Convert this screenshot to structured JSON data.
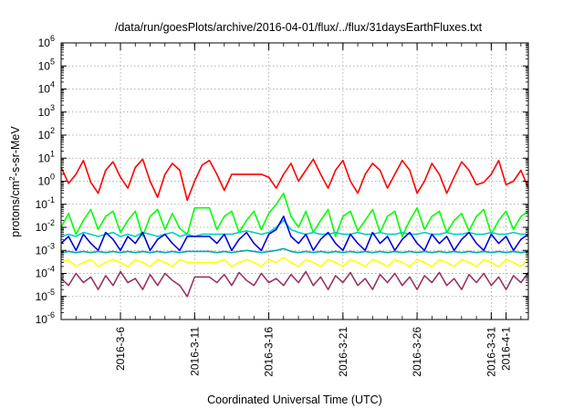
{
  "chart_data": {
    "type": "line",
    "title": "/data/run/goesPlots/archive/2016-04-01/flux/../flux/31daysEarthFluxes.txt",
    "xlabel": "Coordinated Universal Time (UTC)",
    "ylabel": {
      "prefix": "protons/cm",
      "sup": "2",
      "suffix": "-s-sr-MeV"
    },
    "yscale": "log",
    "ylim": [
      1e-06,
      1000000
    ],
    "y_ticks": [
      {
        "exp": "-6",
        "value": 1e-06
      },
      {
        "exp": "-5",
        "value": 1e-05
      },
      {
        "exp": "-4",
        "value": 0.0001
      },
      {
        "exp": "-3",
        "value": 0.001
      },
      {
        "exp": "-2",
        "value": 0.01
      },
      {
        "exp": "-1",
        "value": 0.1
      },
      {
        "exp": "0",
        "value": 1
      },
      {
        "exp": "1",
        "value": 10
      },
      {
        "exp": "2",
        "value": 100
      },
      {
        "exp": "3",
        "value": 1000
      },
      {
        "exp": "4",
        "value": 10000
      },
      {
        "exp": "5",
        "value": 100000
      },
      {
        "exp": "6",
        "value": 1000000
      }
    ],
    "xlim": [
      "2016-03-02T00:00",
      "2016-04-02T12:00"
    ],
    "x_ticks": [
      {
        "label": "2016-3-6",
        "date": "2016-03-06"
      },
      {
        "label": "2016-3-11",
        "date": "2016-03-11"
      },
      {
        "label": "2016-3-16",
        "date": "2016-03-16"
      },
      {
        "label": "2016-3-21",
        "date": "2016-03-21"
      },
      {
        "label": "2016-3-26",
        "date": "2016-03-26"
      },
      {
        "label": "2016-3-31",
        "date": "2016-03-31"
      },
      {
        "label": "2016-4-1",
        "date": "2016-04-01"
      }
    ],
    "grid": true,
    "series": [
      {
        "color": "#ff0000",
        "values": [
          4,
          0.8,
          2,
          8,
          0.9,
          0.3,
          3,
          7,
          1.5,
          0.5,
          4,
          9,
          1,
          0.2,
          2,
          6,
          3,
          0.15,
          1,
          5,
          8,
          2,
          0.4,
          2,
          2,
          2,
          2,
          2,
          1.5,
          0.5,
          2,
          6,
          1,
          3,
          9,
          2,
          0.5,
          3,
          8,
          1,
          0.3,
          2,
          6,
          3,
          0.5,
          2,
          8,
          3,
          0.3,
          1,
          6,
          2,
          0.3,
          1.5,
          7,
          3,
          0.7,
          0.9,
          2,
          8,
          0.7,
          1,
          3,
          0.5
        ]
      },
      {
        "color": "#00ff00",
        "values": [
          0.01,
          0.04,
          0.005,
          0.02,
          0.06,
          0.008,
          0.03,
          0.05,
          0.006,
          0.02,
          0.05,
          0.004,
          0.03,
          0.06,
          0.008,
          0.04,
          0.009,
          0.005,
          0.07,
          0.07,
          0.07,
          0.008,
          0.03,
          0.05,
          0.006,
          0.02,
          0.05,
          0.008,
          0.04,
          0.1,
          0.3,
          0.03,
          0.01,
          0.05,
          0.006,
          0.02,
          0.06,
          0.004,
          0.03,
          0.05,
          0.007,
          0.02,
          0.06,
          0.006,
          0.03,
          0.05,
          0.004,
          0.02,
          0.07,
          0.008,
          0.03,
          0.05,
          0.006,
          0.02,
          0.04,
          0.007,
          0.03,
          0.06,
          0.005,
          0.02,
          0.05,
          0.008,
          0.03,
          0.05
        ]
      },
      {
        "color": "#00cccc",
        "values": [
          0.004,
          0.005,
          0.004,
          0.006,
          0.005,
          0.004,
          0.005,
          0.006,
          0.004,
          0.005,
          0.004,
          0.006,
          0.005,
          0.004,
          0.005,
          0.006,
          0.004,
          0.005,
          0.004,
          0.005,
          0.005,
          0.005,
          0.005,
          0.005,
          0.006,
          0.007,
          0.006,
          0.005,
          0.006,
          0.01,
          0.02,
          0.008,
          0.006,
          0.005,
          0.006,
          0.005,
          0.005,
          0.006,
          0.005,
          0.005,
          0.006,
          0.005,
          0.005,
          0.006,
          0.005,
          0.005,
          0.006,
          0.005,
          0.005,
          0.006,
          0.005,
          0.005,
          0.006,
          0.005,
          0.005,
          0.006,
          0.005,
          0.005,
          0.006,
          0.005,
          0.005,
          0.006,
          0.005,
          0.005
        ]
      },
      {
        "color": "#0000dd",
        "values": [
          0.002,
          0.004,
          0.001,
          0.005,
          0.002,
          0.001,
          0.006,
          0.003,
          0.001,
          0.004,
          0.002,
          0.006,
          0.001,
          0.003,
          0.005,
          0.002,
          0.001,
          0.004,
          0.004,
          0.004,
          0.004,
          0.002,
          0.005,
          0.001,
          0.003,
          0.006,
          0.002,
          0.001,
          0.005,
          0.008,
          0.03,
          0.004,
          0.002,
          0.005,
          0.001,
          0.003,
          0.006,
          0.002,
          0.001,
          0.005,
          0.002,
          0.001,
          0.006,
          0.002,
          0.004,
          0.001,
          0.003,
          0.006,
          0.002,
          0.001,
          0.005,
          0.002,
          0.004,
          0.001,
          0.003,
          0.006,
          0.002,
          0.001,
          0.005,
          0.002,
          0.004,
          0.001,
          0.003,
          0.005
        ]
      },
      {
        "color": "#00aaaa",
        "values": [
          0.0008,
          0.0009,
          0.0008,
          0.0009,
          0.0008,
          0.0009,
          0.0008,
          0.0009,
          0.0008,
          0.0009,
          0.0008,
          0.0009,
          0.0008,
          0.0009,
          0.0008,
          0.0009,
          0.0008,
          0.0009,
          0.0009,
          0.0009,
          0.0009,
          0.0008,
          0.0009,
          0.0008,
          0.0009,
          0.001,
          0.0009,
          0.0008,
          0.0009,
          0.001,
          0.0012,
          0.0009,
          0.0008,
          0.0009,
          0.0008,
          0.0009,
          0.0008,
          0.0009,
          0.0008,
          0.0009,
          0.0008,
          0.0009,
          0.0008,
          0.0009,
          0.0008,
          0.0009,
          0.0008,
          0.0009,
          0.0008,
          0.0009,
          0.0008,
          0.0009,
          0.0008,
          0.0009,
          0.0008,
          0.0009,
          0.0008,
          0.0009,
          0.0008,
          0.0009,
          0.0008,
          0.0009,
          0.0008,
          0.0009
        ]
      },
      {
        "color": "#ffff00",
        "values": [
          0.0003,
          0.0004,
          0.0002,
          0.0003,
          0.0004,
          0.0002,
          0.0003,
          0.0004,
          0.0003,
          0.0002,
          0.0004,
          0.0003,
          0.0002,
          0.0004,
          0.0003,
          0.0002,
          0.0004,
          0.0003,
          0.0003,
          0.0003,
          0.0003,
          0.0003,
          0.0004,
          0.0002,
          0.0003,
          0.0004,
          0.0003,
          0.0002,
          0.0004,
          0.0003,
          0.0005,
          0.0003,
          0.0002,
          0.0004,
          0.0003,
          0.0002,
          0.0004,
          0.0003,
          0.0002,
          0.0004,
          0.0003,
          0.0002,
          0.0004,
          0.0003,
          0.0002,
          0.0004,
          0.0003,
          0.0002,
          0.0004,
          0.0003,
          0.0002,
          0.0004,
          0.0003,
          0.0002,
          0.0004,
          0.0003,
          0.0002,
          0.0004,
          0.0003,
          0.0002,
          0.0004,
          0.0003,
          0.0002,
          0.0004
        ]
      },
      {
        "color": "#993366",
        "values": [
          6e-05,
          3e-05,
          0.0001,
          4e-05,
          7e-05,
          2e-05,
          8e-05,
          3e-05,
          0.00012,
          4e-05,
          6e-05,
          2e-05,
          9e-05,
          3e-05,
          0.0001,
          5e-05,
          3e-05,
          1e-05,
          7e-05,
          7e-05,
          7e-05,
          4e-05,
          9e-05,
          3e-05,
          0.00011,
          5e-05,
          3e-05,
          0.0001,
          4e-05,
          6e-05,
          3e-05,
          9e-05,
          4e-05,
          0.00012,
          3e-05,
          7e-05,
          2e-05,
          8e-05,
          4e-05,
          0.00011,
          3e-05,
          6e-05,
          2e-05,
          9e-05,
          4e-05,
          0.0001,
          3e-05,
          7e-05,
          2e-05,
          8e-05,
          4e-05,
          0.00011,
          3e-05,
          6e-05,
          2e-05,
          9e-05,
          4e-05,
          0.0001,
          3e-05,
          7e-05,
          2e-05,
          8e-05,
          4e-05,
          0.00011
        ]
      }
    ]
  }
}
